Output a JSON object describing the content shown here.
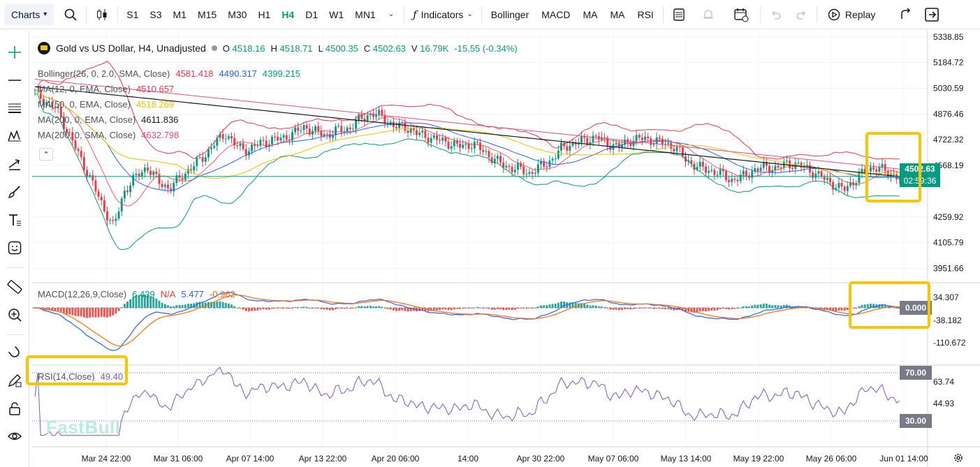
{
  "toolbar": {
    "charts_label": "Charts",
    "timeframes": [
      "S1",
      "S3",
      "M1",
      "M15",
      "M30",
      "H1",
      "H4",
      "D1",
      "W1",
      "MN1"
    ],
    "active_timeframe": "H4",
    "indicators_label": "Indicators",
    "quick_indicators": [
      "Bollinger",
      "MACD",
      "MA",
      "MA",
      "RSI"
    ],
    "replay_label": "Replay"
  },
  "legend": {
    "symbol": "Gold vs US Dollar, H4, Unadjusted",
    "open_label": "O",
    "open": "4518.16",
    "high_label": "H",
    "high": "4518.71",
    "low_label": "L",
    "low": "4500.35",
    "close_label": "C",
    "close": "4502.63",
    "volume_label": "V",
    "volume": "16.79K",
    "change": "-15.55 (-0.34%)"
  },
  "studies": [
    {
      "label": "Bollinger(26, 0, 2.0, SMA, Close)",
      "values": [
        "4581.418",
        "4490.317",
        "4399.215"
      ],
      "colors": [
        "#f23645",
        "#2962ff",
        "#089981"
      ]
    },
    {
      "label": "MA(12, 0, EMA, Close)",
      "values": [
        "4510.657"
      ],
      "colors": [
        "#f23645"
      ]
    },
    {
      "label": "MA(50, 0, EMA, Close)",
      "values": [
        "4518.269"
      ],
      "colors": [
        "#e5c500"
      ]
    },
    {
      "label": "MA(200, 0, EMA, Close)",
      "values": [
        "4611.836"
      ],
      "colors": [
        "#131722"
      ]
    },
    {
      "label": "MA(200, 0, SMA, Close)",
      "values": [
        "4632.798"
      ],
      "colors": [
        "#e84a7f"
      ]
    }
  ],
  "macd_legend": {
    "label": "MACD(12,26,9,Close)",
    "v1": "6.439",
    "v2": "N/A",
    "v3": "5.477",
    "v4": "-0.962"
  },
  "rsi_legend": {
    "label": "RSI(14,Close)",
    "value": "49.40"
  },
  "price_axis": [
    "5338.85",
    "5184.72",
    "5030.59",
    "4876.46",
    "4722.32",
    "4568.19",
    "4259.92",
    "4105.79",
    "3951.66"
  ],
  "current_price": "4502.63",
  "countdown": "02:59:36",
  "macd_axis": [
    "34.307",
    "-38.182",
    "-110.672"
  ],
  "macd_zero": "0.000",
  "rsi_axis": [
    "70.00",
    "63.74",
    "44.93",
    "30.00"
  ],
  "time_axis": [
    "Mar 24 22:00",
    "Mar 31 06:00",
    "Apr 07 14:00",
    "Apr 13 22:00",
    "Apr 20 06:00",
    "14:00",
    "Apr 30 22:00",
    "May 07 06:00",
    "May 13 14:00",
    "May 19 22:00",
    "May 26 06:00",
    "Jun 01 14:00"
  ],
  "watermark": "FastBull",
  "colors": {
    "up": "#089981",
    "down": "#f23645",
    "accent": "#089981",
    "highlight": "#f7c600",
    "rsi": "#7e57c2",
    "macd": "#2962ff",
    "signal": "#ff6d00"
  },
  "chart_data": {
    "type": "candlestick",
    "price_range": [
      3870,
      5380
    ],
    "series_close_approx": [
      5005,
      4950,
      4900,
      4760,
      4620,
      4480,
      4330,
      4200,
      4420,
      4500,
      4560,
      4470,
      4430,
      4500,
      4560,
      4620,
      4700,
      4760,
      4680,
      4660,
      4700,
      4720,
      4730,
      4760,
      4800,
      4770,
      4750,
      4780,
      4790,
      4850,
      4880,
      4860,
      4800,
      4800,
      4760,
      4740,
      4720,
      4700,
      4680,
      4700,
      4650,
      4600,
      4560,
      4550,
      4520,
      4560,
      4600,
      4680,
      4700,
      4720,
      4740,
      4700,
      4680,
      4720,
      4730,
      4720,
      4700,
      4680,
      4600,
      4560,
      4540,
      4520,
      4480,
      4500,
      4540,
      4560,
      4550,
      4580,
      4570,
      4540,
      4500,
      4460,
      4420,
      4480,
      4540,
      4560,
      4520,
      4502
    ]
  }
}
